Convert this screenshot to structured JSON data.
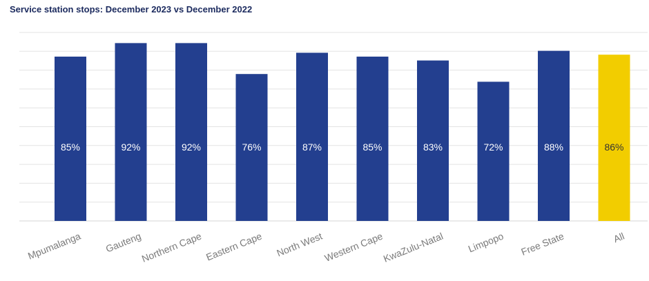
{
  "title": "Service station stops: December 2023 vs December 2022",
  "colors": {
    "bar": "#233f8f",
    "highlight": "#f2cd00",
    "label_on_bar": "#ffffff",
    "label_on_highlight": "#333333"
  },
  "chart_data": {
    "type": "bar",
    "title": "Service station stops: December 2023 vs December 2022",
    "categories": [
      "Mpumalanga",
      "Gauteng",
      "Northern Cape",
      "Eastern Cape",
      "North West",
      "Western Cape",
      "KwaZulu-Natal",
      "Limpopo",
      "Free State",
      "All"
    ],
    "values": [
      85,
      92,
      92,
      76,
      87,
      85,
      83,
      72,
      88,
      86
    ],
    "value_labels": [
      "85%",
      "92%",
      "92%",
      "76%",
      "87%",
      "85%",
      "83%",
      "72%",
      "88%",
      "86%"
    ],
    "highlight_category": "All",
    "ylim": [
      0,
      100
    ],
    "grid": true,
    "legend": "none",
    "xlabel": "",
    "ylabel": ""
  }
}
